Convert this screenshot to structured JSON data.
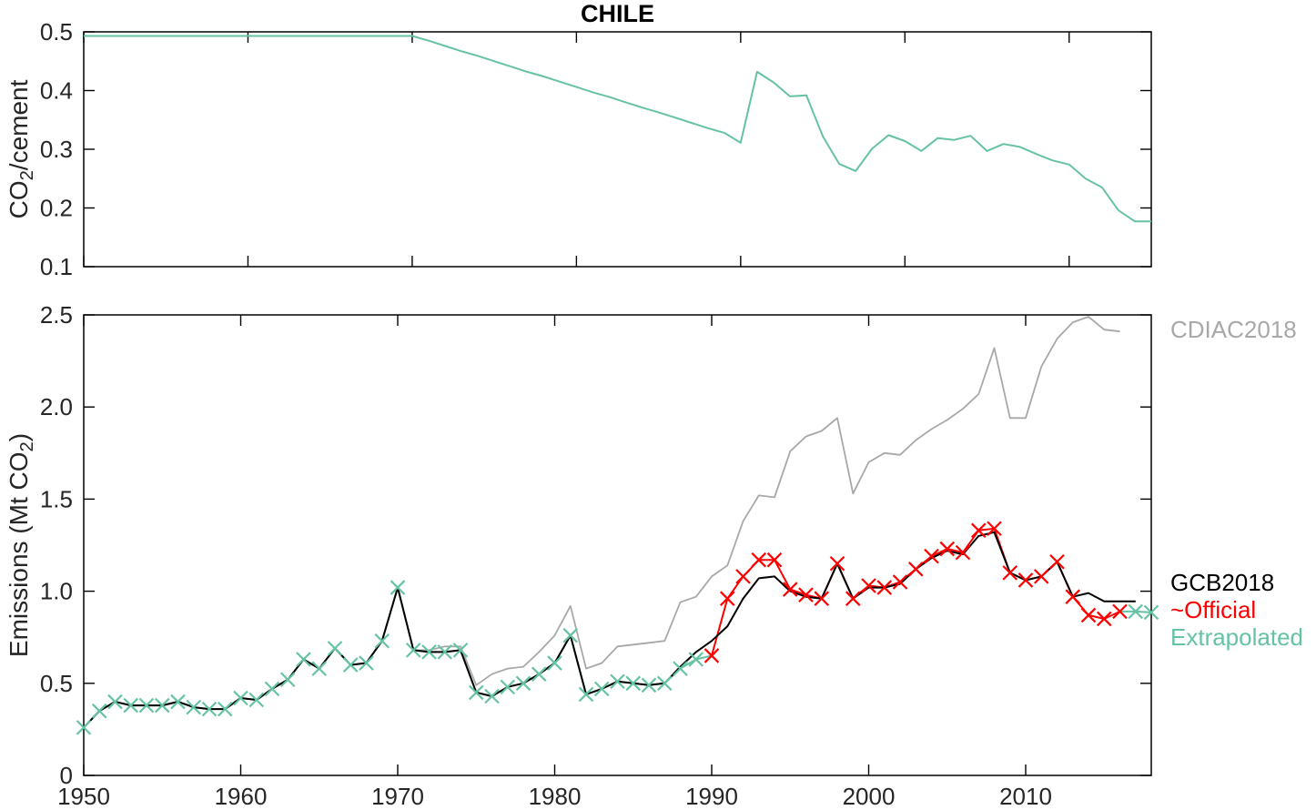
{
  "title": "CHILE",
  "legend": {
    "cdiac": "CDIAC2018",
    "gcb": "GCB2018",
    "official": "~Official",
    "extrapolated": "Extrapolated"
  },
  "colors": {
    "extrapolated": "#66c2a5",
    "official": "#fe0000",
    "gcb": "#000000",
    "cdiac": "#a8a8a8",
    "axis": "#000000",
    "tick_text": "#262626"
  },
  "chart_data": [
    {
      "type": "line",
      "panel": "top",
      "title": "CHILE",
      "ylabel": "CO2/cement",
      "ylabel_parts": [
        "CO",
        {
          "sub": "2"
        },
        "/cement"
      ],
      "xlim": [
        1950,
        2015
      ],
      "ylim": [
        0.1,
        0.5
      ],
      "grid": false,
      "xticks": [
        1950,
        1960,
        1970,
        1980,
        1990,
        2000,
        2010
      ],
      "xtick_labels": [],
      "yticks": [
        0.1,
        0.2,
        0.3,
        0.4,
        0.5
      ],
      "ytick_labels": [
        "0.1",
        "0.2",
        "0.3",
        "0.4",
        "0.5"
      ],
      "series": [
        {
          "name": "co2-per-cement-ratio",
          "color": "#66c2a5",
          "width": 2,
          "x0": 1950,
          "y": [
            0.493,
            0.493,
            0.493,
            0.493,
            0.493,
            0.493,
            0.493,
            0.493,
            0.493,
            0.493,
            0.493,
            0.493,
            0.493,
            0.493,
            0.493,
            0.493,
            0.493,
            0.493,
            0.493,
            0.493,
            0.493,
            0.485,
            0.476,
            0.467,
            0.459,
            0.45,
            0.441,
            0.432,
            0.424,
            0.415,
            0.406,
            0.397,
            0.389,
            0.38,
            0.371,
            0.363,
            0.354,
            0.345,
            0.336,
            0.328,
            0.311,
            0.432,
            0.414,
            0.39,
            0.392,
            0.322,
            0.275,
            0.263,
            0.301,
            0.324,
            0.314,
            0.297,
            0.319,
            0.316,
            0.323,
            0.297,
            0.309,
            0.304,
            0.292,
            0.281,
            0.274,
            0.25,
            0.235,
            0.196,
            0.177,
            0.177
          ]
        }
      ]
    },
    {
      "type": "line",
      "panel": "bottom",
      "ylabel": "Emissions (Mt CO2)",
      "ylabel_parts": [
        "Emissions (Mt CO",
        {
          "sub": "2"
        },
        ")"
      ],
      "xlim": [
        1950,
        2018
      ],
      "ylim": [
        0,
        2.5
      ],
      "grid": false,
      "legend_position": "right-outside",
      "xticks": [
        1950,
        1960,
        1970,
        1980,
        1990,
        2000,
        2010
      ],
      "xtick_labels": [
        "1950",
        "1960",
        "1970",
        "1980",
        "1990",
        "2000",
        "2010"
      ],
      "yticks": [
        0,
        0.5,
        1.0,
        1.5,
        2.0,
        2.5
      ],
      "ytick_labels": [
        "0",
        "0.5",
        "1.0",
        "1.5",
        "2.0",
        "2.5"
      ],
      "series": [
        {
          "name": "CDIAC2018",
          "color": "#a8a8a8",
          "width": 1.8,
          "x0": 1950,
          "y": [
            0.26,
            0.35,
            0.4,
            0.38,
            0.38,
            0.38,
            0.4,
            0.37,
            0.36,
            0.36,
            0.42,
            0.41,
            0.47,
            0.52,
            0.63,
            0.58,
            0.69,
            0.6,
            0.61,
            0.73,
            1.02,
            0.68,
            0.68,
            0.7,
            0.7,
            0.49,
            0.55,
            0.58,
            0.59,
            0.67,
            0.76,
            0.92,
            0.58,
            0.61,
            0.7,
            0.71,
            0.72,
            0.73,
            0.94,
            0.97,
            1.08,
            1.14,
            1.38,
            1.52,
            1.51,
            1.76,
            1.84,
            1.87,
            1.94,
            1.53,
            1.7,
            1.75,
            1.74,
            1.82,
            1.88,
            1.93,
            1.99,
            2.07,
            2.32,
            1.94,
            1.94,
            2.22,
            2.37,
            2.46,
            2.49,
            2.42,
            2.41
          ]
        },
        {
          "name": "Extrapolated-early",
          "color": "#66c2a5",
          "width": 2,
          "x0": 1950,
          "marker": "x",
          "marker_range": [
            1950,
            1989
          ],
          "y": [
            0.26,
            0.35,
            0.4,
            0.38,
            0.38,
            0.38,
            0.4,
            0.37,
            0.36,
            0.36,
            0.42,
            0.41,
            0.47,
            0.52,
            0.63,
            0.58,
            0.69,
            0.6,
            0.61,
            0.73,
            1.02,
            0.68,
            0.67,
            0.67,
            0.68,
            0.45,
            0.43,
            0.48,
            0.5,
            0.55,
            0.61,
            0.76,
            0.44,
            0.47,
            0.51,
            0.5,
            0.49,
            0.5,
            0.58,
            0.63,
            0.65
          ]
        },
        {
          "name": "Official",
          "color": "#fe0000",
          "width": 2,
          "x0": 1990,
          "marker": "x",
          "marker_range": [
            1990,
            2016
          ],
          "y": [
            0.65,
            0.96,
            1.08,
            1.17,
            1.17,
            1.01,
            0.98,
            0.96,
            1.15,
            0.96,
            1.03,
            1.02,
            1.05,
            1.12,
            1.19,
            1.23,
            1.21,
            1.33,
            1.34,
            1.1,
            1.06,
            1.08,
            1.16,
            0.97,
            0.87,
            0.85,
            0.89
          ]
        },
        {
          "name": "GCB2018",
          "color": "#000000",
          "width": 2,
          "x0": 1950,
          "y": [
            0.26,
            0.35,
            0.4,
            0.38,
            0.38,
            0.38,
            0.4,
            0.37,
            0.36,
            0.36,
            0.42,
            0.41,
            0.47,
            0.52,
            0.63,
            0.58,
            0.69,
            0.6,
            0.61,
            0.73,
            1.02,
            0.68,
            0.67,
            0.67,
            0.68,
            0.45,
            0.43,
            0.48,
            0.5,
            0.55,
            0.61,
            0.76,
            0.44,
            0.47,
            0.51,
            0.5,
            0.49,
            0.5,
            0.59,
            0.67,
            0.73,
            0.81,
            0.96,
            1.07,
            1.08,
            1.0,
            0.97,
            0.96,
            1.15,
            0.96,
            1.02,
            1.02,
            1.04,
            1.12,
            1.18,
            1.22,
            1.2,
            1.3,
            1.32,
            1.1,
            1.06,
            1.08,
            1.16,
            0.97,
            0.99,
            0.945,
            0.945,
            0.945
          ]
        },
        {
          "name": "Extrapolated-late",
          "color": "#66c2a5",
          "width": 2,
          "x0": 2016,
          "marker": "x",
          "marker_range": [
            2017,
            2018
          ],
          "y": [
            0.89,
            0.89,
            0.885
          ]
        }
      ]
    }
  ]
}
